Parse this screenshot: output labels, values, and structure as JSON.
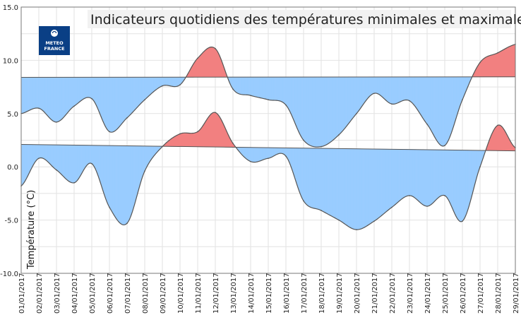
{
  "chart_data": {
    "type": "area",
    "title": "Indicateurs quotidiens des températures minimales et maximales",
    "ylabel": "Température (°C)",
    "xlabel": "",
    "ylim": [
      -10,
      15
    ],
    "yticks": [
      "15.0",
      "10.0",
      "5.0",
      "0.0",
      "-5.0",
      "-10.0"
    ],
    "grid": true,
    "categories": [
      "01/01/2017",
      "02/01/2017",
      "03/01/2017",
      "04/01/2017",
      "05/01/2017",
      "06/01/2017",
      "07/01/2017",
      "08/01/2017",
      "09/01/2017",
      "10/01/2017",
      "11/01/2017",
      "12/01/2017",
      "13/01/2017",
      "14/01/2017",
      "15/01/2017",
      "16/01/2017",
      "17/01/2017",
      "18/01/2017",
      "19/01/2017",
      "20/01/2017",
      "21/01/2017",
      "22/01/2017",
      "23/01/2017",
      "24/01/2017",
      "25/01/2017",
      "26/01/2017",
      "27/01/2017",
      "28/01/2017",
      "29/01/2017"
    ],
    "series": [
      {
        "role": "tmax",
        "values": [
          5.0,
          5.5,
          4.2,
          5.7,
          6.4,
          3.3,
          4.6,
          6.3,
          7.6,
          7.7,
          10.2,
          11.1,
          7.3,
          6.7,
          6.3,
          5.8,
          2.5,
          1.9,
          3.0,
          5.0,
          6.9,
          5.9,
          6.2,
          4.0,
          2.0,
          6.3,
          9.8,
          10.7,
          11.5
        ],
        "normal": [
          8.4,
          8.45
        ]
      },
      {
        "role": "tmin",
        "values": [
          -1.8,
          0.8,
          -0.3,
          -1.5,
          0.3,
          -3.8,
          -5.3,
          -0.4,
          1.9,
          3.1,
          3.3,
          5.1,
          2.2,
          0.5,
          0.8,
          1.0,
          -3.2,
          -4.1,
          -5.0,
          -5.9,
          -5.1,
          -3.8,
          -2.7,
          -3.7,
          -2.7,
          -5.1,
          0.0,
          3.9,
          1.8
        ],
        "normal": [
          2.1,
          1.5
        ]
      }
    ],
    "colors": {
      "below_normal": "#99ccff",
      "above_normal": "#f28080",
      "line": "#555555",
      "grid": "#e2e2e2"
    }
  },
  "logo": {
    "line1": "METEO",
    "line2": "FRANCE",
    "color": "#0a3f85"
  }
}
